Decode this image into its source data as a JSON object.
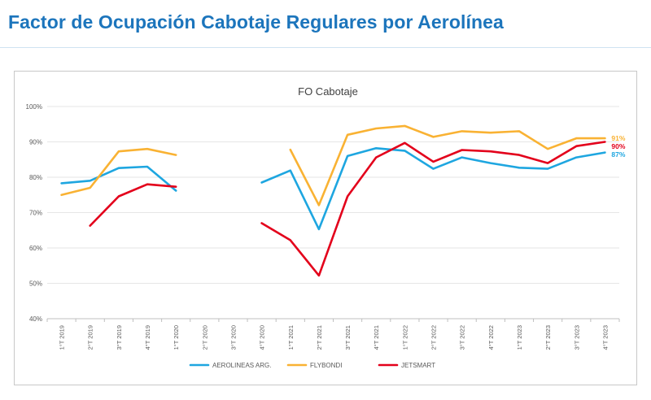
{
  "page": {
    "title": "Factor de Ocupación Cabotaje Regulares por Aerolínea"
  },
  "chart_data": {
    "type": "line",
    "title": "FO Cabotaje",
    "xlabel": "",
    "ylabel": "",
    "ylim": [
      0.4,
      1.0
    ],
    "yticks": [
      "40%",
      "50%",
      "60%",
      "70%",
      "80%",
      "90%",
      "100%"
    ],
    "grid": true,
    "legend": "bottom",
    "categories": [
      "1°T 2019",
      "2°T 2019",
      "3°T 2019",
      "4°T 2019",
      "1°T 2020",
      "2°T 2020",
      "3°T 2020",
      "4°T 2020",
      "1°T 2021",
      "2°T 2021",
      "3°T 2021",
      "4°T 2021",
      "1°T 2022",
      "2°T 2022",
      "3°T 2022",
      "4°T 2022",
      "1°T 2023",
      "2°T 2023",
      "3°T 2023",
      "4°T 2023"
    ],
    "series": [
      {
        "name": "AEROLINEAS ARG.",
        "color": "#1ea6e0",
        "end_label": "87%",
        "values": [
          0.783,
          0.79,
          0.826,
          0.83,
          0.762,
          null,
          null,
          0.785,
          0.819,
          0.653,
          0.86,
          0.882,
          0.875,
          0.824,
          0.856,
          0.84,
          0.827,
          0.824,
          0.856,
          0.87
        ]
      },
      {
        "name": "FLYBONDI",
        "color": "#f9b233",
        "end_label": "91%",
        "values": [
          0.75,
          0.77,
          0.873,
          0.88,
          0.863,
          null,
          null,
          null,
          0.878,
          0.721,
          0.92,
          0.938,
          0.945,
          0.914,
          0.93,
          0.926,
          0.93,
          0.88,
          0.91,
          0.91
        ]
      },
      {
        "name": "JETSMART",
        "color": "#e3001b",
        "end_label": "90%",
        "values": [
          null,
          0.663,
          0.746,
          0.78,
          0.773,
          null,
          null,
          0.67,
          0.622,
          0.522,
          0.746,
          0.856,
          0.897,
          0.844,
          0.877,
          0.873,
          0.863,
          0.84,
          0.888,
          0.9
        ]
      }
    ]
  }
}
